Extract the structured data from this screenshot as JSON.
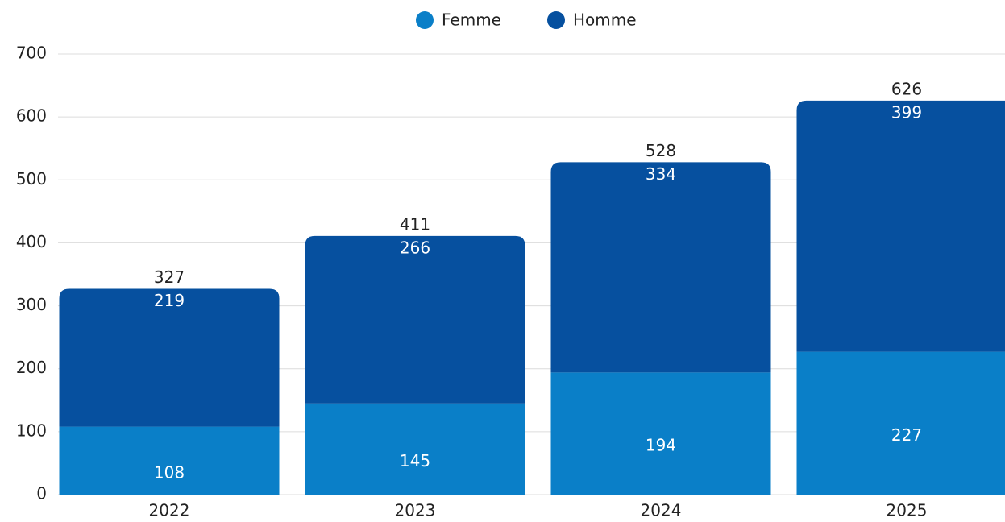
{
  "chart_data": {
    "type": "stacked_bar",
    "categories": [
      "2022",
      "2023",
      "2024",
      "2025"
    ],
    "series": [
      {
        "name": "Femme",
        "color": "#0a7fc8",
        "values": [
          108,
          145,
          194,
          227
        ]
      },
      {
        "name": "Homme",
        "color": "#06509f",
        "values": [
          219,
          266,
          334,
          399
        ]
      }
    ],
    "totals": [
      327,
      411,
      528,
      626
    ],
    "ylim": [
      0,
      700
    ],
    "yticks": [
      0,
      100,
      200,
      300,
      400,
      500,
      600,
      700
    ],
    "grid": true,
    "legend": "top"
  }
}
